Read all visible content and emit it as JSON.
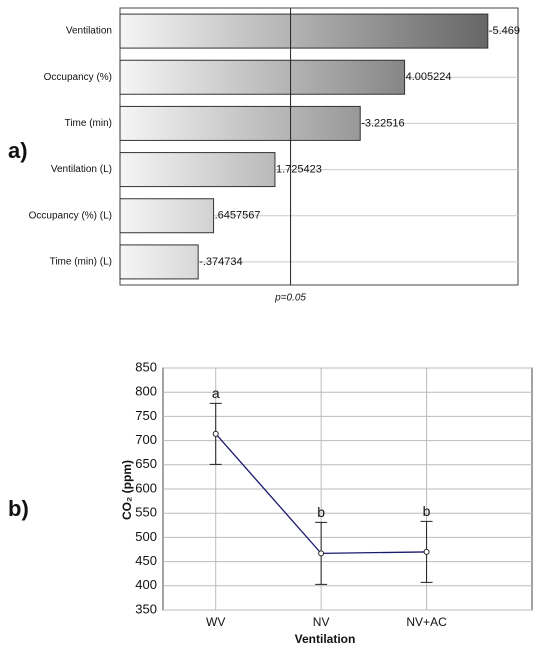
{
  "chart_data": [
    {
      "type": "pareto",
      "panel_label": "a)",
      "categories": [
        "Ventilation",
        "Occupancy (%)",
        "Time (min)",
        "Ventilation (L)",
        "Occupancy (%) (L)",
        "Time (min) (L)"
      ],
      "values": [
        -5.469,
        4.005224,
        -3.22516,
        1.725423,
        0.6457567,
        -0.374734
      ],
      "value_labels": [
        "-5.469",
        "4.005224",
        "-3.22516",
        "1.725423",
        ".6457567",
        "-.374734"
      ],
      "xlim": [
        -1,
        6
      ],
      "ref_line": {
        "value": 2,
        "label": "p=0.05"
      },
      "color": "#5a5a5a",
      "grid": true
    },
    {
      "type": "line",
      "panel_label": "b)",
      "categories": [
        "WV",
        "NV",
        "NV+AC"
      ],
      "values": [
        714,
        467,
        470
      ],
      "errors": [
        63,
        64,
        63
      ],
      "letters": [
        "a",
        "b",
        "b"
      ],
      "color": "#1a1a6e",
      "y_label": "CO₂ (ppm)",
      "x_label": "Ventilation",
      "ylim": [
        350,
        850
      ],
      "yticks": [
        350,
        400,
        450,
        500,
        550,
        600,
        650,
        700,
        750,
        800,
        850
      ],
      "grid": true
    }
  ]
}
